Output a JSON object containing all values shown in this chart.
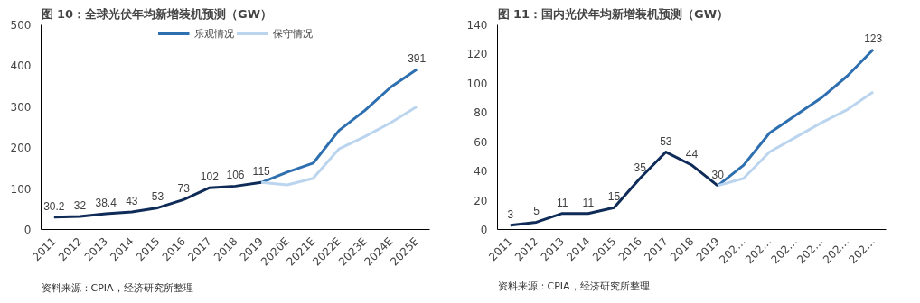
{
  "chart_data": [
    {
      "type": "line",
      "title": "图 10：全球光伏年均新增装机预测（GW）",
      "categories": [
        "2011",
        "2012",
        "2013",
        "2014",
        "2015",
        "2016",
        "2017",
        "2018",
        "2019",
        "2020E",
        "2021E",
        "2022E",
        "2023E",
        "2024E",
        "2025E"
      ],
      "series": [
        {
          "color": "#0f2b57",
          "values": [
            30.2,
            32,
            38.4,
            43,
            53,
            73,
            102,
            106,
            115,
            null,
            null,
            null,
            null,
            null,
            null
          ],
          "value_labels": [
            "30.2",
            "32",
            "38.4",
            "43",
            "53",
            "73",
            "102",
            "106",
            "115",
            null,
            null,
            null,
            null,
            null,
            null
          ]
        },
        {
          "name": "乐观情况",
          "color": "#2e6fb0",
          "values": [
            null,
            null,
            null,
            null,
            null,
            null,
            null,
            null,
            115,
            140,
            162,
            242,
            291,
            348,
            391
          ],
          "value_labels": [
            null,
            null,
            null,
            null,
            null,
            null,
            null,
            null,
            null,
            null,
            null,
            null,
            null,
            null,
            "391"
          ]
        },
        {
          "name": "保守情况",
          "color": "#bcd5ee",
          "values": [
            null,
            null,
            null,
            null,
            null,
            null,
            null,
            null,
            115,
            109,
            125,
            197,
            227,
            261,
            300
          ]
        }
      ],
      "ylim": [
        0,
        500
      ],
      "yticks": [
        0,
        100,
        200,
        300,
        400,
        500
      ],
      "grid": false,
      "legend": "top",
      "annotations": [
        "资料来源：CPIA，经济研究所整理"
      ]
    },
    {
      "type": "line",
      "title": "图 11：国内光伏年均新增装机预测（GW）",
      "categories": [
        "2011",
        "2012",
        "2013",
        "2014",
        "2015",
        "2016",
        "2017",
        "2018",
        "2019",
        "202…",
        "202…",
        "202…",
        "202…",
        "202…",
        "202…"
      ],
      "series": [
        {
          "color": "#0f2b57",
          "values": [
            3,
            5,
            11,
            11,
            15,
            35,
            53,
            44,
            30,
            null,
            null,
            null,
            null,
            null,
            null
          ],
          "value_labels": [
            "3",
            "5",
            "11",
            "11",
            "15",
            "35",
            "53",
            "44",
            "30",
            null,
            null,
            null,
            null,
            null,
            null
          ]
        },
        {
          "color": "#2e6fb0",
          "values": [
            null,
            null,
            null,
            null,
            null,
            null,
            null,
            null,
            30,
            44,
            66,
            78,
            90,
            105,
            123
          ],
          "value_labels": [
            null,
            null,
            null,
            null,
            null,
            null,
            null,
            null,
            null,
            null,
            null,
            null,
            null,
            null,
            "123"
          ]
        },
        {
          "color": "#bcd5ee",
          "values": [
            null,
            null,
            null,
            null,
            null,
            null,
            null,
            null,
            30,
            35,
            53,
            63,
            73,
            82,
            94
          ]
        }
      ],
      "ylim": [
        0,
        140
      ],
      "yticks": [
        0,
        20,
        40,
        60,
        80,
        100,
        120,
        140
      ],
      "grid": false,
      "legend": false,
      "annotations": [
        "资料来源：CPIA，经济研究所整理"
      ]
    }
  ]
}
